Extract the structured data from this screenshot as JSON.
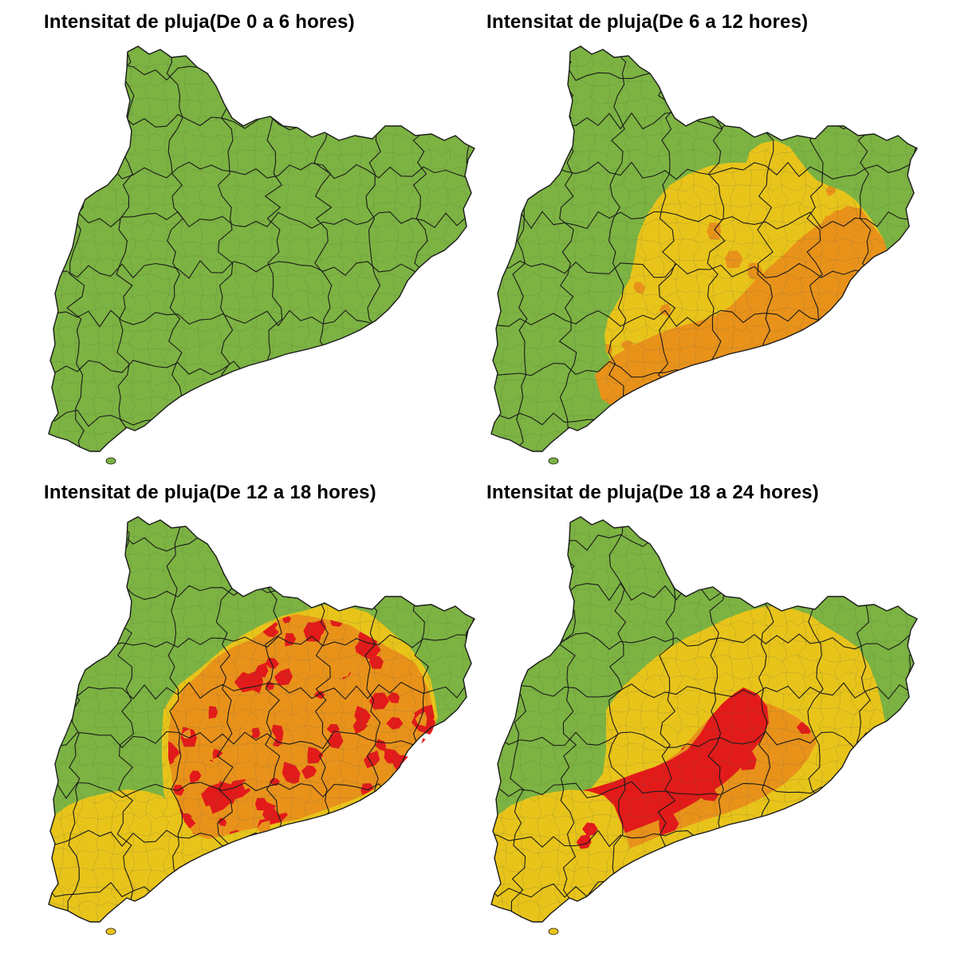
{
  "colors": {
    "green": "#7cb342",
    "yellow": "#e8c41a",
    "orange": "#e9921a",
    "red": "#e21a1a",
    "border": "#1a1a1a",
    "background": "#ffffff"
  },
  "panels": [
    {
      "title": "Intensitat de pluja(De 0 a 6 hores)",
      "zones": {
        "yellow": false,
        "orange": false,
        "red": false,
        "south_yellow": false
      }
    },
    {
      "title": "Intensitat de pluja(De 6 a 12 hores)",
      "zones": {
        "yellow": true,
        "orange": true,
        "red": false,
        "south_yellow": false
      }
    },
    {
      "title": "Intensitat de pluja(De 12 a 18 hores)",
      "zones": {
        "yellow": true,
        "orange": true,
        "red": true,
        "south_yellow": true
      }
    },
    {
      "title": "Intensitat de pluja(De 18 a 24 hores)",
      "zones": {
        "yellow": true,
        "orange": true,
        "red": true,
        "south_yellow": true
      }
    }
  ]
}
